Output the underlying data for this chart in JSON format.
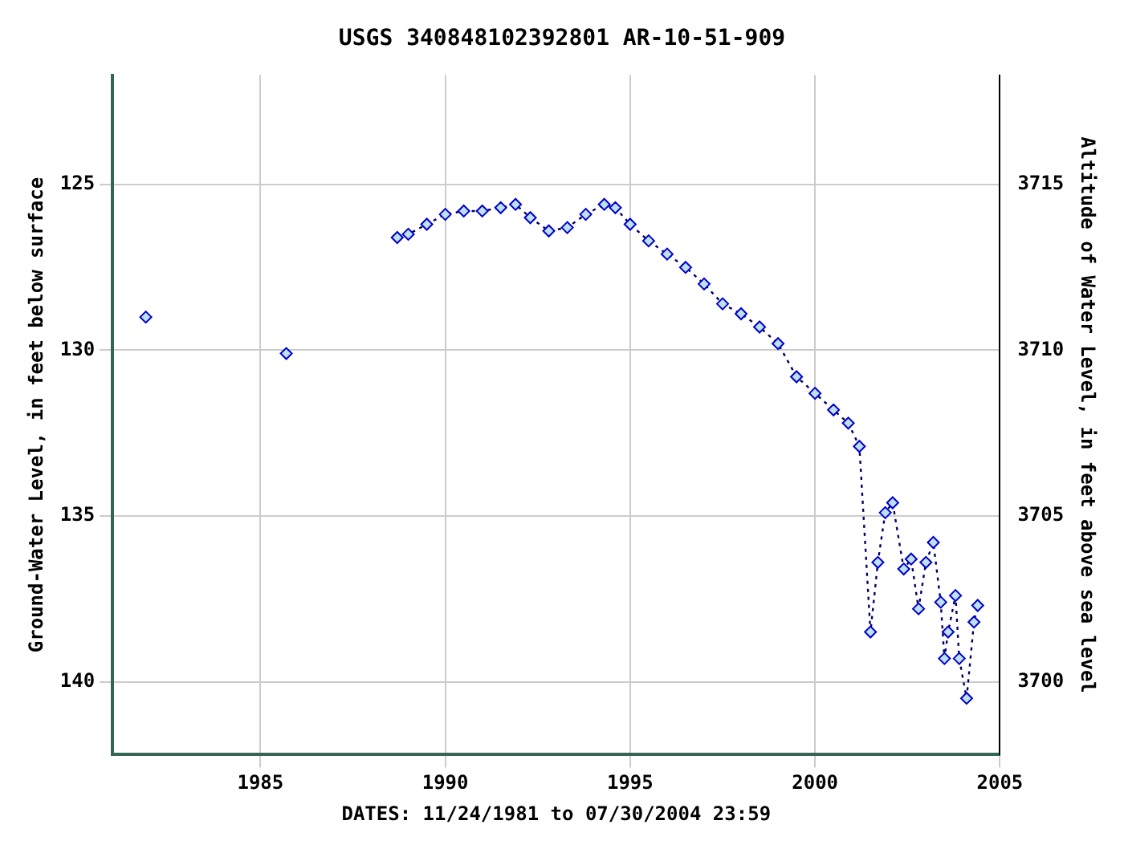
{
  "chart_data": {
    "type": "line",
    "title": "USGS 340848102392801 AR-10-51-909",
    "xlabel": "DATES: 11/24/1981 to 07/30/2004 23:59",
    "ylabel": "Ground-Water Level, in feet below surface",
    "y2label": "Altitude of Water Level, in feet above sea level",
    "xlim": [
      1981,
      2005
    ],
    "xticks": [
      1985,
      1990,
      1995,
      2000,
      2005
    ],
    "ylim": [
      142.2,
      121.7
    ],
    "yticks": [
      125,
      130,
      135,
      140
    ],
    "y2lim": [
      3697.8,
      3718.3
    ],
    "y2ticks": [
      3700,
      3705,
      3710,
      3715
    ],
    "grid": true,
    "marker": "diamond",
    "line_style": "dotted",
    "series": [
      {
        "color": "#0000cc",
        "x": [
          1981.9,
          1984,
          1985.7,
          1987,
          1988.7,
          1989.0,
          1989.5,
          1990.0,
          1990.5,
          1991.0,
          1991.5,
          1991.9,
          1992.3,
          1992.8,
          1993.3,
          1993.8,
          1994.3,
          1994.6,
          1995.0,
          1995.5,
          1996.0,
          1996.5,
          1997.0,
          1997.5,
          1998.0,
          1998.5,
          1999.0,
          1999.5,
          2000.0,
          2000.5,
          2000.9,
          2001.2,
          2001.5,
          2001.7,
          2001.9,
          2002.1,
          2002.4,
          2002.6,
          2002.8,
          2003.0,
          2003.2,
          2003.4,
          2003.5,
          2003.6,
          2003.8,
          2003.9,
          2004.1,
          2004.3,
          2004.4
        ],
        "values": [
          129.0,
          null,
          130.1,
          null,
          126.6,
          126.5,
          126.2,
          125.9,
          125.8,
          125.8,
          125.7,
          125.6,
          126.0,
          126.4,
          126.3,
          125.9,
          125.6,
          125.7,
          126.2,
          126.7,
          127.1,
          127.5,
          128.0,
          128.6,
          128.9,
          129.3,
          129.8,
          130.8,
          131.3,
          131.8,
          132.2,
          132.9,
          138.5,
          136.4,
          134.9,
          134.6,
          136.6,
          136.3,
          137.8,
          136.4,
          135.8,
          137.6,
          139.3,
          138.5,
          137.4,
          139.3,
          140.5,
          138.2,
          137.7
        ]
      }
    ]
  }
}
